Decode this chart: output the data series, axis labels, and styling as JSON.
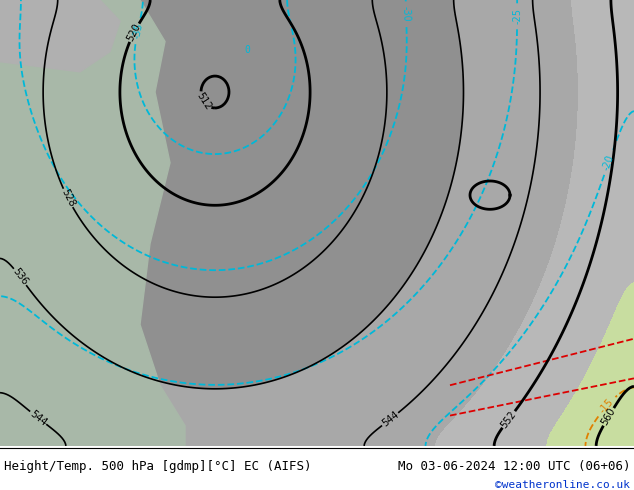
{
  "title_left": "Height/Temp. 500 hPa [gdmp][°C] EC (AIFS)",
  "title_right": "Mo 03-06-2024 12:00 UTC (06+06)",
  "credit": "©weatheronline.co.uk",
  "bg_land_color": "#c8dda0",
  "bg_sea_color": "#b0c0b0",
  "bg_gray_color": "#b8b8b8",
  "contour_height_color": "#000000",
  "contour_temp_warm_color": "#e08000",
  "contour_temp_cold_color": "#00b8d8",
  "contour_temp_red_color": "#dd0000",
  "label_fontsize": 7,
  "title_fontsize": 9,
  "credit_fontsize": 8,
  "fig_width": 6.34,
  "fig_height": 4.9,
  "dpi": 100
}
